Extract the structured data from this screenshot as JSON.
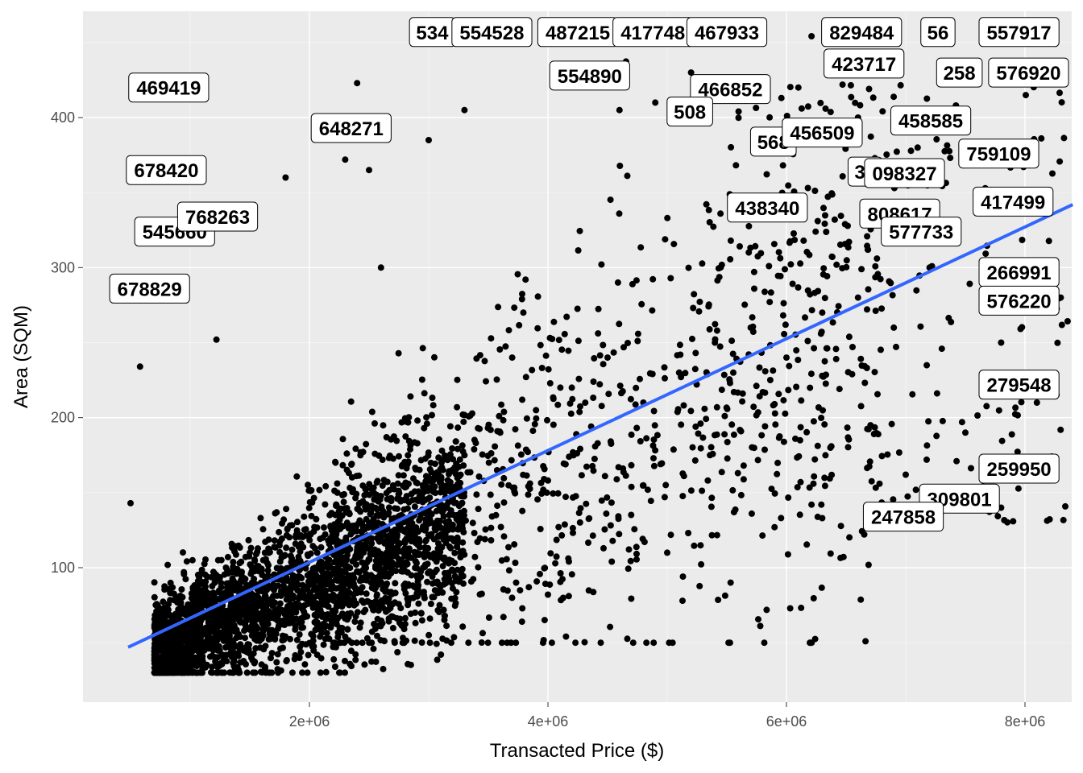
{
  "chart_data": {
    "type": "scatter",
    "title": "",
    "xlabel": "Transacted Price ($)",
    "ylabel": "Area (SQM)",
    "xlim": [
      0,
      8400000
    ],
    "ylim": [
      0,
      475
    ],
    "x_ticks": [
      {
        "value": 2000000,
        "label": "2e+06"
      },
      {
        "value": 4000000,
        "label": "4e+06"
      },
      {
        "value": 6000000,
        "label": "6e+06"
      },
      {
        "value": 8000000,
        "label": "8e+06"
      }
    ],
    "y_ticks": [
      {
        "value": 100,
        "label": "100"
      },
      {
        "value": 200,
        "label": "200"
      },
      {
        "value": 300,
        "label": "300"
      },
      {
        "value": 400,
        "label": "400"
      }
    ],
    "grid": true,
    "point_color": "#000000",
    "trend_line": {
      "method": "linear",
      "color": "#3366ff",
      "x": [
        480000,
        8400000
      ],
      "y": [
        47,
        342
      ]
    },
    "points": [
      [
        500000,
        143
      ],
      [
        580000,
        234
      ],
      [
        820000,
        282
      ],
      [
        1220000,
        252
      ],
      [
        1000000,
        55
      ],
      [
        1200000,
        62
      ],
      [
        1400000,
        70
      ],
      [
        1600000,
        78
      ],
      [
        1800000,
        86
      ],
      [
        2000000,
        95
      ],
      [
        1300000,
        100
      ],
      [
        1500000,
        110
      ],
      [
        1100000,
        90
      ],
      [
        900000,
        70
      ],
      [
        2200000,
        120
      ],
      [
        2500000,
        130
      ],
      [
        2800000,
        145
      ],
      [
        3000000,
        160
      ],
      [
        3300000,
        175
      ],
      [
        3600000,
        190
      ],
      [
        3900000,
        205
      ],
      [
        4200000,
        220
      ],
      [
        4500000,
        240
      ],
      [
        4800000,
        210
      ],
      [
        5100000,
        230
      ],
      [
        5400000,
        250
      ],
      [
        5700000,
        260
      ],
      [
        6000000,
        240
      ],
      [
        6300000,
        270
      ],
      [
        6600000,
        280
      ],
      [
        6900000,
        260
      ],
      [
        7200000,
        300
      ],
      [
        7500000,
        190
      ],
      [
        7800000,
        250
      ],
      [
        8100000,
        210
      ],
      [
        8300000,
        280
      ],
      [
        2300000,
        372
      ],
      [
        2500000,
        365
      ],
      [
        3000000,
        385
      ],
      [
        3300000,
        405
      ],
      [
        4600000,
        405
      ],
      [
        4900000,
        410
      ],
      [
        5200000,
        430
      ],
      [
        6100000,
        420
      ],
      [
        6600000,
        400
      ],
      [
        7100000,
        380
      ],
      [
        4000000,
        82
      ],
      [
        5900000,
        127
      ],
      [
        6300000,
        133
      ],
      [
        7000000,
        162
      ],
      [
        7800000,
        140
      ],
      [
        5000000,
        110
      ],
      [
        2400000,
        423
      ],
      [
        1800000,
        360
      ],
      [
        2600000,
        300
      ],
      [
        3700000,
        240
      ]
    ],
    "labels": [
      {
        "text": "469419",
        "x": 820000,
        "y": 420
      },
      {
        "text": "678420",
        "x": 800000,
        "y": 365
      },
      {
        "text": "545660",
        "x": 870000,
        "y": 324
      },
      {
        "text": "678829",
        "x": 660000,
        "y": 286
      },
      {
        "text": "648271",
        "x": 2350000,
        "y": 393
      },
      {
        "text": "768263",
        "x": 1230000,
        "y": 334
      },
      {
        "text": "534",
        "x": 3030000,
        "y": 457
      },
      {
        "text": "554528",
        "x": 3530000,
        "y": 457
      },
      {
        "text": "487215",
        "x": 4250000,
        "y": 457
      },
      {
        "text": "417748",
        "x": 4880000,
        "y": 457
      },
      {
        "text": "467933",
        "x": 5500000,
        "y": 457
      },
      {
        "text": "554890",
        "x": 4350000,
        "y": 428
      },
      {
        "text": "829484",
        "x": 6630000,
        "y": 457
      },
      {
        "text": "56",
        "x": 7270000,
        "y": 457
      },
      {
        "text": "557917",
        "x": 7950000,
        "y": 457
      },
      {
        "text": "423717",
        "x": 6650000,
        "y": 436
      },
      {
        "text": "258",
        "x": 7450000,
        "y": 430
      },
      {
        "text": "576920",
        "x": 8030000,
        "y": 430
      },
      {
        "text": "466852",
        "x": 5530000,
        "y": 419
      },
      {
        "text": "508",
        "x": 5190000,
        "y": 404
      },
      {
        "text": "458585",
        "x": 7210000,
        "y": 398
      },
      {
        "text": "568",
        "x": 5890000,
        "y": 384
      },
      {
        "text": "456509",
        "x": 6300000,
        "y": 390
      },
      {
        "text": "759109",
        "x": 7780000,
        "y": 376
      },
      {
        "text": "30",
        "x": 6660000,
        "y": 364
      },
      {
        "text": "098327",
        "x": 6990000,
        "y": 363
      },
      {
        "text": "417499",
        "x": 7900000,
        "y": 344
      },
      {
        "text": "438340",
        "x": 5840000,
        "y": 340
      },
      {
        "text": "808617",
        "x": 6950000,
        "y": 336
      },
      {
        "text": "577733",
        "x": 7130000,
        "y": 324
      },
      {
        "text": "266991",
        "x": 7950000,
        "y": 297
      },
      {
        "text": "576220",
        "x": 7950000,
        "y": 278
      },
      {
        "text": "279548",
        "x": 7950000,
        "y": 222
      },
      {
        "text": "259950",
        "x": 7950000,
        "y": 166
      },
      {
        "text": "309801",
        "x": 7450000,
        "y": 146
      },
      {
        "text": "247858",
        "x": 6980000,
        "y": 134
      }
    ]
  }
}
